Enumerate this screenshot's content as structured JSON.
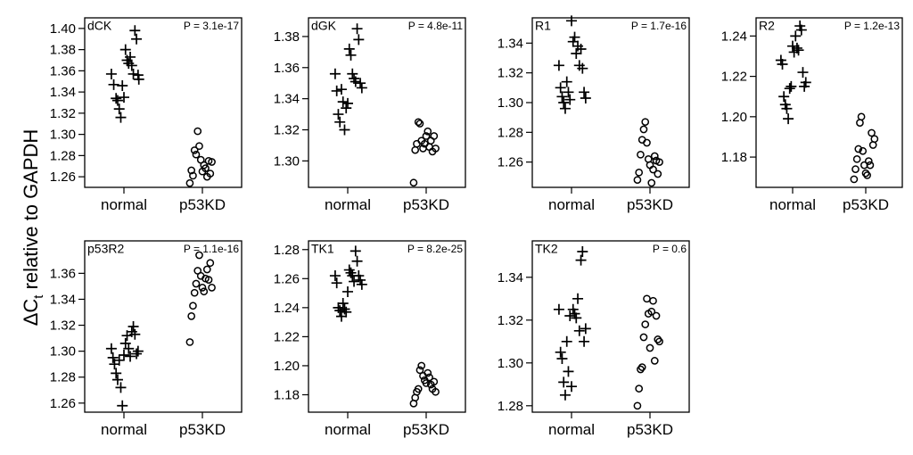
{
  "figure": {
    "ylabel_main": "ΔC",
    "ylabel_sub": "t",
    "ylabel_rest": " relative to GAPDH"
  },
  "chart_data": [
    {
      "type": "scatter",
      "title": "dCK",
      "pvalue": "P = 3.1e-17",
      "categories": [
        "normal",
        "p53KD"
      ],
      "ylim": [
        1.25,
        1.41
      ],
      "yticks": [
        1.26,
        1.28,
        1.3,
        1.32,
        1.34,
        1.36,
        1.38,
        1.4
      ],
      "ytick_labels": [
        "1.26",
        "1.28",
        "1.30",
        "1.32",
        "1.34",
        "1.36",
        "1.38",
        "1.40"
      ],
      "series": [
        {
          "name": "normal",
          "marker": "plus",
          "x": [
            0.84,
            0.87,
            0.9,
            0.92,
            0.94,
            0.96,
            0.98,
            1.0,
            1.02,
            1.04,
            1.06,
            1.08,
            1.1,
            1.12,
            1.14,
            1.16,
            1.18,
            1.19
          ],
          "values": [
            1.357,
            1.347,
            1.334,
            1.332,
            1.324,
            1.316,
            1.346,
            1.335,
            1.38,
            1.37,
            1.367,
            1.373,
            1.365,
            1.357,
            1.398,
            1.39,
            1.356,
            1.352
          ]
        },
        {
          "name": "p53KD",
          "marker": "circle",
          "x": [
            1.84,
            1.86,
            1.88,
            1.9,
            1.92,
            1.94,
            1.96,
            1.98,
            2.0,
            2.02,
            2.04,
            2.06,
            2.08,
            2.1,
            2.12
          ],
          "values": [
            1.254,
            1.266,
            1.261,
            1.285,
            1.281,
            1.303,
            1.289,
            1.276,
            1.265,
            1.271,
            1.268,
            1.26,
            1.275,
            1.263,
            1.274
          ]
        }
      ]
    },
    {
      "type": "scatter",
      "title": "dGK",
      "pvalue": "P = 4.8e-11",
      "categories": [
        "normal",
        "p53KD"
      ],
      "ylim": [
        1.283,
        1.392
      ],
      "yticks": [
        1.3,
        1.32,
        1.34,
        1.36,
        1.38
      ],
      "ytick_labels": [
        "1.30",
        "1.32",
        "1.34",
        "1.36",
        "1.38"
      ],
      "series": [
        {
          "name": "normal",
          "marker": "plus",
          "x": [
            0.84,
            0.86,
            0.88,
            0.9,
            0.92,
            0.94,
            0.96,
            0.98,
            1.0,
            1.02,
            1.04,
            1.06,
            1.08,
            1.1,
            1.12,
            1.14,
            1.16,
            1.18
          ],
          "values": [
            1.356,
            1.345,
            1.33,
            1.325,
            1.346,
            1.338,
            1.32,
            1.334,
            1.337,
            1.372,
            1.368,
            1.356,
            1.353,
            1.351,
            1.385,
            1.378,
            1.35,
            1.347
          ]
        },
        {
          "name": "p53KD",
          "marker": "circle",
          "x": [
            1.84,
            1.86,
            1.88,
            1.9,
            1.92,
            1.94,
            1.96,
            1.98,
            2.0,
            2.02,
            2.04,
            2.06,
            2.08,
            2.1,
            2.12
          ],
          "values": [
            1.286,
            1.307,
            1.311,
            1.325,
            1.324,
            1.313,
            1.308,
            1.311,
            1.316,
            1.319,
            1.309,
            1.313,
            1.306,
            1.316,
            1.308
          ]
        }
      ]
    },
    {
      "type": "scatter",
      "title": "R1",
      "pvalue": "P = 1.7e-16",
      "categories": [
        "normal",
        "p53KD"
      ],
      "ylim": [
        1.243,
        1.357
      ],
      "yticks": [
        1.26,
        1.28,
        1.3,
        1.32,
        1.34
      ],
      "ytick_labels": [
        "1.26",
        "1.28",
        "1.30",
        "1.32",
        "1.34"
      ],
      "series": [
        {
          "name": "normal",
          "marker": "plus",
          "x": [
            0.84,
            0.86,
            0.88,
            0.9,
            0.92,
            0.94,
            0.96,
            0.98,
            1.0,
            1.02,
            1.04,
            1.06,
            1.08,
            1.1,
            1.12,
            1.14,
            1.16,
            1.18
          ],
          "values": [
            1.325,
            1.31,
            1.304,
            1.3,
            1.296,
            1.314,
            1.307,
            1.302,
            1.355,
            1.341,
            1.344,
            1.333,
            1.338,
            1.325,
            1.336,
            1.323,
            1.307,
            1.303
          ]
        },
        {
          "name": "p53KD",
          "marker": "circle",
          "x": [
            1.84,
            1.86,
            1.88,
            1.9,
            1.92,
            1.94,
            1.96,
            1.98,
            2.0,
            2.02,
            2.04,
            2.06,
            2.08,
            2.1,
            2.12
          ],
          "values": [
            1.248,
            1.253,
            1.265,
            1.275,
            1.282,
            1.287,
            1.273,
            1.262,
            1.258,
            1.246,
            1.255,
            1.264,
            1.261,
            1.252,
            1.26
          ]
        }
      ]
    },
    {
      "type": "scatter",
      "title": "R2",
      "pvalue": "P = 1.2e-13",
      "categories": [
        "normal",
        "p53KD"
      ],
      "ylim": [
        1.165,
        1.249
      ],
      "yticks": [
        1.18,
        1.2,
        1.22,
        1.24
      ],
      "ytick_labels": [
        "1.18",
        "1.20",
        "1.22",
        "1.24"
      ],
      "series": [
        {
          "name": "normal",
          "marker": "plus",
          "x": [
            0.84,
            0.86,
            0.88,
            0.9,
            0.92,
            0.94,
            0.96,
            0.98,
            1.0,
            1.02,
            1.04,
            1.06,
            1.08,
            1.1,
            1.12,
            1.14,
            1.16,
            1.18
          ],
          "values": [
            1.228,
            1.226,
            1.21,
            1.206,
            1.204,
            1.199,
            1.214,
            1.215,
            1.235,
            1.232,
            1.24,
            1.234,
            1.233,
            1.245,
            1.243,
            1.222,
            1.215,
            1.217
          ]
        },
        {
          "name": "p53KD",
          "marker": "circle",
          "x": [
            1.84,
            1.86,
            1.88,
            1.9,
            1.92,
            1.94,
            1.96,
            1.98,
            2.0,
            2.02,
            2.04,
            2.06,
            2.08,
            2.1,
            2.12
          ],
          "values": [
            1.169,
            1.174,
            1.179,
            1.184,
            1.197,
            1.2,
            1.183,
            1.176,
            1.172,
            1.171,
            1.178,
            1.176,
            1.192,
            1.186,
            1.189
          ]
        }
      ]
    },
    {
      "type": "scatter",
      "title": "p53R2",
      "pvalue": "P = 1.1e-16",
      "categories": [
        "normal",
        "p53KD"
      ],
      "ylim": [
        1.253,
        1.385
      ],
      "yticks": [
        1.26,
        1.28,
        1.3,
        1.32,
        1.34,
        1.36
      ],
      "ytick_labels": [
        "1.26",
        "1.28",
        "1.30",
        "1.32",
        "1.34",
        "1.36"
      ],
      "series": [
        {
          "name": "normal",
          "marker": "plus",
          "x": [
            0.84,
            0.86,
            0.88,
            0.9,
            0.92,
            0.94,
            0.96,
            0.98,
            1.0,
            1.02,
            1.04,
            1.06,
            1.08,
            1.1,
            1.12,
            1.14,
            1.16,
            1.18
          ],
          "values": [
            1.302,
            1.295,
            1.29,
            1.283,
            1.278,
            1.293,
            1.272,
            1.258,
            1.297,
            1.306,
            1.312,
            1.302,
            1.296,
            1.315,
            1.319,
            1.313,
            1.298,
            1.3
          ]
        },
        {
          "name": "p53KD",
          "marker": "circle",
          "x": [
            1.84,
            1.86,
            1.88,
            1.9,
            1.92,
            1.94,
            1.96,
            1.98,
            2.0,
            2.02,
            2.04,
            2.06,
            2.08,
            2.1,
            2.12
          ],
          "values": [
            1.307,
            1.327,
            1.335,
            1.345,
            1.352,
            1.362,
            1.374,
            1.358,
            1.349,
            1.346,
            1.356,
            1.363,
            1.355,
            1.368,
            1.349
          ]
        }
      ]
    },
    {
      "type": "scatter",
      "title": "TK1",
      "pvalue": "P = 8.2e-25",
      "categories": [
        "normal",
        "p53KD"
      ],
      "ylim": [
        1.168,
        1.286
      ],
      "yticks": [
        1.18,
        1.2,
        1.22,
        1.24,
        1.26,
        1.28
      ],
      "ytick_labels": [
        "1.18",
        "1.20",
        "1.22",
        "1.24",
        "1.26",
        "1.28"
      ],
      "series": [
        {
          "name": "normal",
          "marker": "plus",
          "x": [
            0.84,
            0.86,
            0.88,
            0.9,
            0.92,
            0.94,
            0.96,
            0.98,
            1.0,
            1.02,
            1.04,
            1.06,
            1.08,
            1.1,
            1.12,
            1.14,
            1.16,
            1.18
          ],
          "values": [
            1.262,
            1.257,
            1.24,
            1.238,
            1.234,
            1.243,
            1.239,
            1.237,
            1.251,
            1.266,
            1.264,
            1.262,
            1.258,
            1.279,
            1.272,
            1.262,
            1.259,
            1.256
          ]
        },
        {
          "name": "p53KD",
          "marker": "circle",
          "x": [
            1.84,
            1.86,
            1.88,
            1.9,
            1.92,
            1.94,
            1.96,
            1.98,
            2.0,
            2.02,
            2.04,
            2.06,
            2.08,
            2.1,
            2.12
          ],
          "values": [
            1.174,
            1.178,
            1.182,
            1.184,
            1.197,
            1.2,
            1.193,
            1.19,
            1.188,
            1.195,
            1.192,
            1.187,
            1.184,
            1.189,
            1.182
          ]
        }
      ]
    },
    {
      "type": "scatter",
      "title": "TK2",
      "pvalue": "P = 0.6",
      "categories": [
        "normal",
        "p53KD"
      ],
      "ylim": [
        1.277,
        1.357
      ],
      "yticks": [
        1.28,
        1.3,
        1.32,
        1.34
      ],
      "ytick_labels": [
        "1.28",
        "1.30",
        "1.32",
        "1.34"
      ],
      "series": [
        {
          "name": "normal",
          "marker": "plus",
          "x": [
            0.84,
            0.86,
            0.88,
            0.9,
            0.92,
            0.94,
            0.96,
            0.98,
            1.0,
            1.02,
            1.04,
            1.06,
            1.08,
            1.1,
            1.12,
            1.14,
            1.16,
            1.18
          ],
          "values": [
            1.325,
            1.305,
            1.302,
            1.291,
            1.285,
            1.31,
            1.296,
            1.322,
            1.289,
            1.325,
            1.323,
            1.321,
            1.33,
            1.315,
            1.348,
            1.352,
            1.31,
            1.316
          ]
        },
        {
          "name": "p53KD",
          "marker": "circle",
          "x": [
            1.84,
            1.86,
            1.88,
            1.9,
            1.92,
            1.94,
            1.96,
            1.98,
            2.0,
            2.02,
            2.04,
            2.06,
            2.08,
            2.1,
            2.12
          ],
          "values": [
            1.28,
            1.288,
            1.297,
            1.298,
            1.312,
            1.318,
            1.33,
            1.323,
            1.307,
            1.324,
            1.329,
            1.301,
            1.322,
            1.311,
            1.31
          ]
        }
      ]
    }
  ]
}
